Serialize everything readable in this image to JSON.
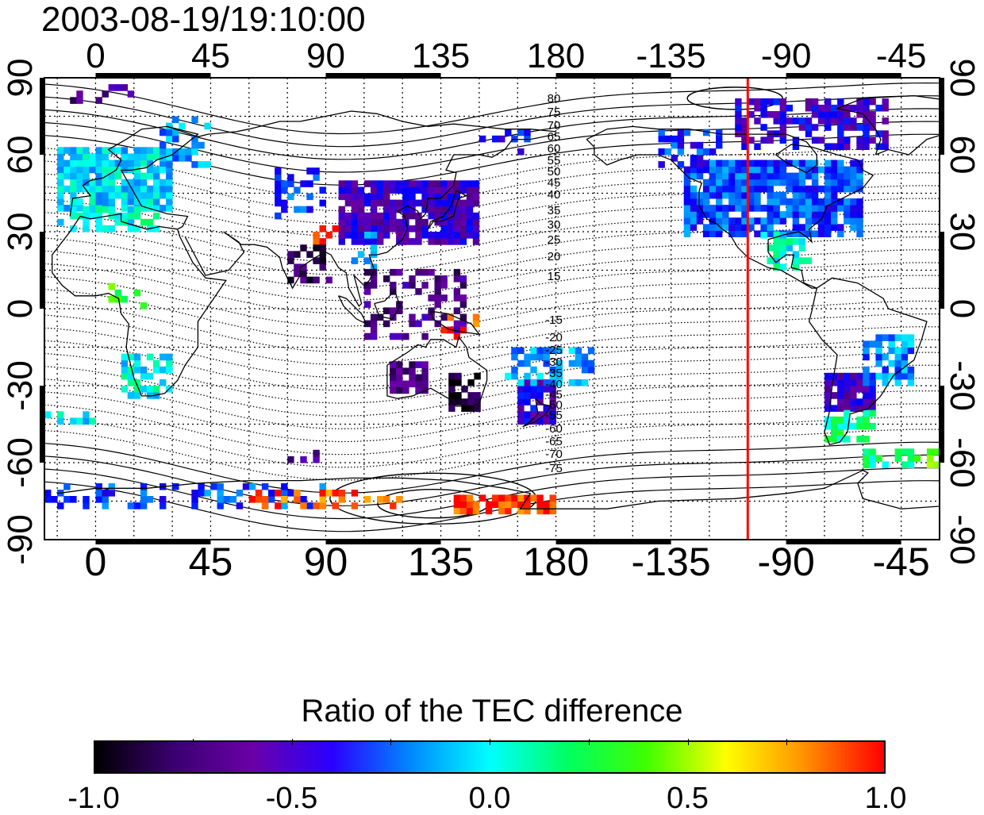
{
  "title": "2003-08-19/19:10:00",
  "map": {
    "x_ticks": [
      "0",
      "45",
      "90",
      "135",
      "180",
      "-135",
      "-90",
      "-45"
    ],
    "y_ticks": [
      "90",
      "60",
      "30",
      "0",
      "-30",
      "-60",
      "-90"
    ],
    "x_range_lon": [
      -20,
      330
    ],
    "y_range_lat": [
      -90,
      90
    ],
    "grid": "dotted",
    "marker_line": {
      "longitude": -105,
      "color": "#ff0000"
    },
    "contour_labels_north": [
      "80",
      "75",
      "70",
      "65",
      "60",
      "55",
      "50",
      "45",
      "40",
      "35",
      "30",
      "25",
      "20",
      "15"
    ],
    "contour_labels_south": [
      "-15",
      "-20",
      "-25",
      "-30",
      "-35",
      "-40",
      "-45",
      "-50",
      "-55",
      "-60",
      "-65",
      "-70",
      "-75"
    ]
  },
  "colorbar": {
    "title": "Ratio of the TEC difference",
    "tick_labels": [
      "-1.0",
      "-0.5",
      "0.0",
      "0.5",
      "1.0"
    ],
    "range": [
      -1.0,
      1.0
    ]
  },
  "colors": {
    "marker": "#ff0000",
    "scale": [
      "#000000",
      "#3a0070",
      "#6a00a8",
      "#0000ff",
      "#0088ff",
      "#00ffff",
      "#00ff60",
      "#40ff00",
      "#ffff00",
      "#ff9000",
      "#ff0000"
    ]
  }
}
